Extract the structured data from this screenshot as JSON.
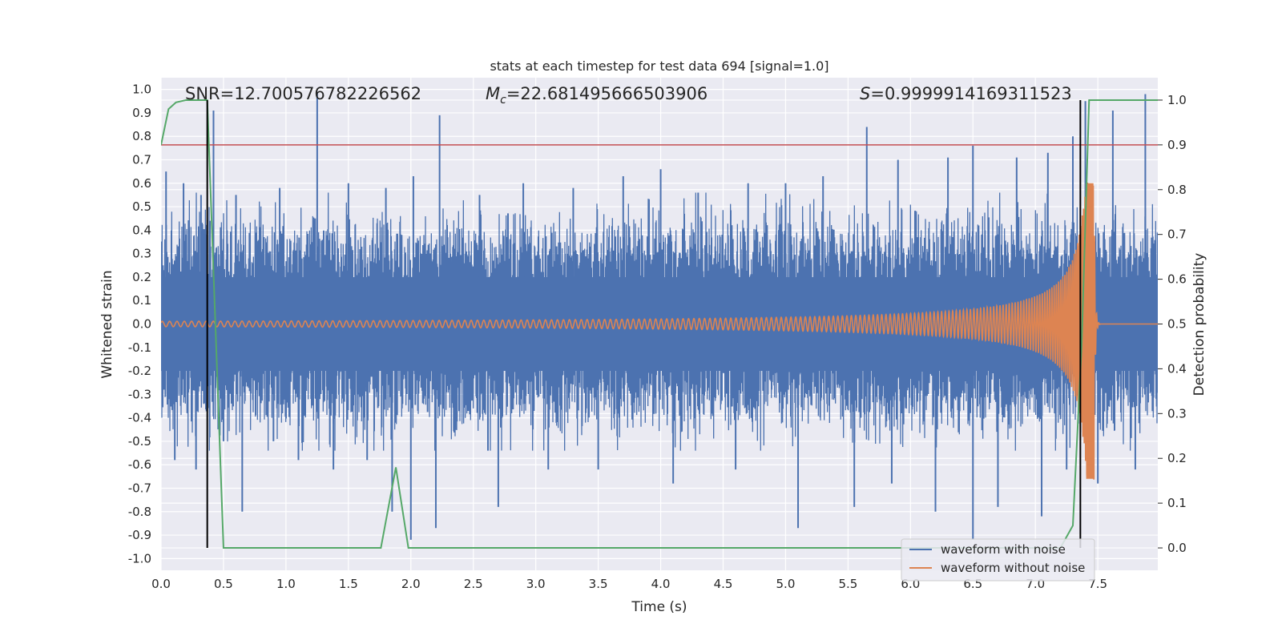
{
  "chart_data": {
    "type": "line",
    "title": "stats at each timestep for test data 694 [signal=1.0]",
    "xlabel": "Time (s)",
    "ylabel": "Whitened strain",
    "y2label": "Detection probability",
    "xlim": [
      0.0,
      7.98
    ],
    "ylim": [
      -1.05,
      1.05
    ],
    "y2lim": [
      -0.05,
      1.05
    ],
    "xticks": [
      "0.0",
      "0.5",
      "1.0",
      "1.5",
      "2.0",
      "2.5",
      "3.0",
      "3.5",
      "4.0",
      "4.5",
      "5.0",
      "5.5",
      "6.0",
      "6.5",
      "7.0",
      "7.5"
    ],
    "yticks": [
      "1.0",
      "0.9",
      "0.8",
      "0.7",
      "0.6",
      "0.5",
      "0.4",
      "0.3",
      "0.2",
      "0.1",
      "0.0",
      "-0.1",
      "-0.2",
      "-0.3",
      "-0.4",
      "-0.5",
      "-0.6",
      "-0.7",
      "-0.8",
      "-0.9",
      "-1.0"
    ],
    "y2ticks": [
      "1.0",
      "0.9",
      "0.8",
      "0.7",
      "0.6",
      "0.5",
      "0.4",
      "0.3",
      "0.2",
      "0.1",
      "0.0"
    ],
    "grid": true,
    "annotations": {
      "snr": "SNR=12.700576782226562",
      "mc_symbol": "M",
      "mc_sub": "c",
      "mc_value": "=22.681495666503906",
      "s_symbol": "S",
      "s_value": "=0.9999914169311523"
    },
    "legend": {
      "placement": "lower-right",
      "entries": [
        "waveform with noise",
        "waveform without noise"
      ]
    },
    "threshold": {
      "y2": 0.9,
      "color": "#c44e52"
    },
    "vlines": [
      0.37,
      7.36
    ],
    "colors": {
      "noise": "#4c72b0",
      "clean": "#dd8452",
      "probability": "#55a868",
      "threshold": "#c44e52",
      "vline": "#000000",
      "background": "#eaeaf2",
      "grid": "#ffffff"
    },
    "series": [
      {
        "name": "waveform with noise",
        "color": "#4c72b0",
        "x_range": [
          0.0,
          7.98
        ],
        "typical_band": [
          -0.37,
          0.39
        ],
        "spikes": [
          [
            0.04,
            0.65
          ],
          [
            0.18,
            0.6
          ],
          [
            0.32,
            0.55
          ],
          [
            0.42,
            0.91
          ],
          [
            0.6,
            0.55
          ],
          [
            0.95,
            0.58
          ],
          [
            1.25,
            0.99
          ],
          [
            1.5,
            0.6
          ],
          [
            1.8,
            0.58
          ],
          [
            2.02,
            0.63
          ],
          [
            2.23,
            0.89
          ],
          [
            2.55,
            0.55
          ],
          [
            2.9,
            0.6
          ],
          [
            3.3,
            0.58
          ],
          [
            3.7,
            0.63
          ],
          [
            4.0,
            0.66
          ],
          [
            4.3,
            0.56
          ],
          [
            4.7,
            0.6
          ],
          [
            5.0,
            0.6
          ],
          [
            5.3,
            0.63
          ],
          [
            5.65,
            0.84
          ],
          [
            5.9,
            0.7
          ],
          [
            6.3,
            0.71
          ],
          [
            6.5,
            0.76
          ],
          [
            6.85,
            0.71
          ],
          [
            7.1,
            0.73
          ],
          [
            7.3,
            0.8
          ],
          [
            7.4,
            0.95
          ],
          [
            7.62,
            0.91
          ],
          [
            7.88,
            0.98
          ],
          [
            0.11,
            -0.58
          ],
          [
            0.28,
            -0.62
          ],
          [
            0.5,
            -0.5
          ],
          [
            0.65,
            -0.8
          ],
          [
            0.9,
            -0.5
          ],
          [
            1.1,
            -0.58
          ],
          [
            1.38,
            -0.62
          ],
          [
            1.65,
            -0.58
          ],
          [
            1.85,
            -0.8
          ],
          [
            2.0,
            -0.92
          ],
          [
            2.2,
            -0.87
          ],
          [
            2.7,
            -0.78
          ],
          [
            3.1,
            -0.62
          ],
          [
            3.5,
            -0.62
          ],
          [
            4.1,
            -0.68
          ],
          [
            4.6,
            -0.62
          ],
          [
            5.1,
            -0.87
          ],
          [
            5.55,
            -0.78
          ],
          [
            5.85,
            -0.68
          ],
          [
            6.2,
            -0.8
          ],
          [
            6.5,
            -0.92
          ],
          [
            6.7,
            -0.78
          ],
          [
            7.05,
            -0.82
          ],
          [
            7.25,
            -0.62
          ],
          [
            7.5,
            -0.68
          ],
          [
            7.8,
            -0.62
          ]
        ]
      },
      {
        "name": "waveform without noise",
        "color": "#dd8452",
        "x_range": [
          0.0,
          7.98
        ],
        "chirp_merger_time": 7.47,
        "peak_amplitude": 0.6,
        "min_amplitude": -0.66,
        "early_amplitude": 0.012
      },
      {
        "color": "#55a868",
        "axis": "y2",
        "x": [
          0.0,
          0.06,
          0.12,
          0.2,
          0.37,
          0.5,
          1.5,
          1.76,
          1.88,
          1.98,
          2.06,
          4.85,
          7.2,
          7.3,
          7.37,
          7.43,
          7.5,
          7.98
        ],
        "y": [
          0.9,
          0.98,
          0.995,
          1.0,
          1.0,
          0.0,
          0.0,
          0.0,
          0.18,
          0.0,
          0.0,
          0.0,
          0.0,
          0.05,
          0.45,
          1.0,
          1.0,
          1.0
        ]
      }
    ]
  }
}
